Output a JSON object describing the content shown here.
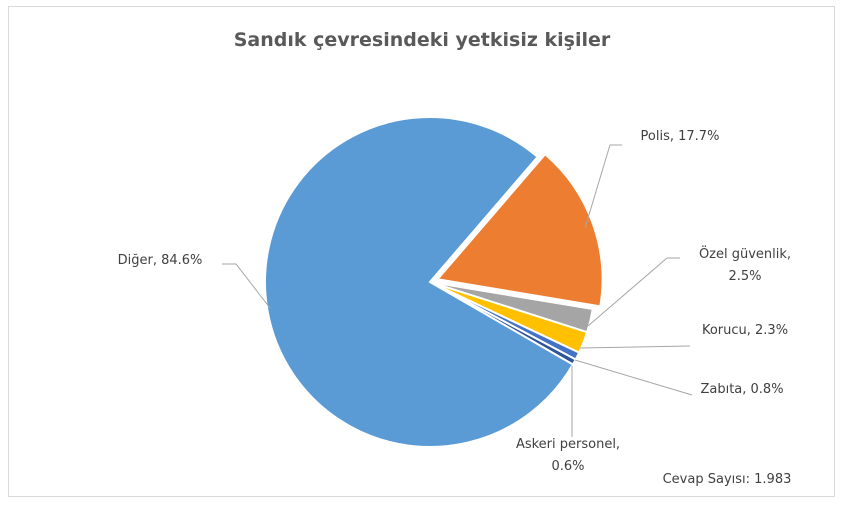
{
  "chart_data": {
    "type": "pie",
    "title": "Sandık çevresindeki yetkisiz kişiler",
    "categories": [
      "Polis",
      "Özel güvenlik",
      "Korucu",
      "Zabıta",
      "Askeri personel",
      "Diğer"
    ],
    "values": [
      17.7,
      2.5,
      2.3,
      0.8,
      0.6,
      84.6
    ],
    "value_labels": [
      "Polis, 17.7%",
      "Özel güvenlik,\n2.5%",
      "Korucu, 2.3%",
      "Zabıta, 0.8%",
      "Askeri personel,\n0.6%",
      "Diğer, 84.6%"
    ],
    "colors": [
      "#ed7d31",
      "#a5a5a5",
      "#ffc000",
      "#4472c4",
      "#2e5597",
      "#5b9bd5"
    ],
    "annotation": "Cevap Sayısı: 1.983"
  }
}
